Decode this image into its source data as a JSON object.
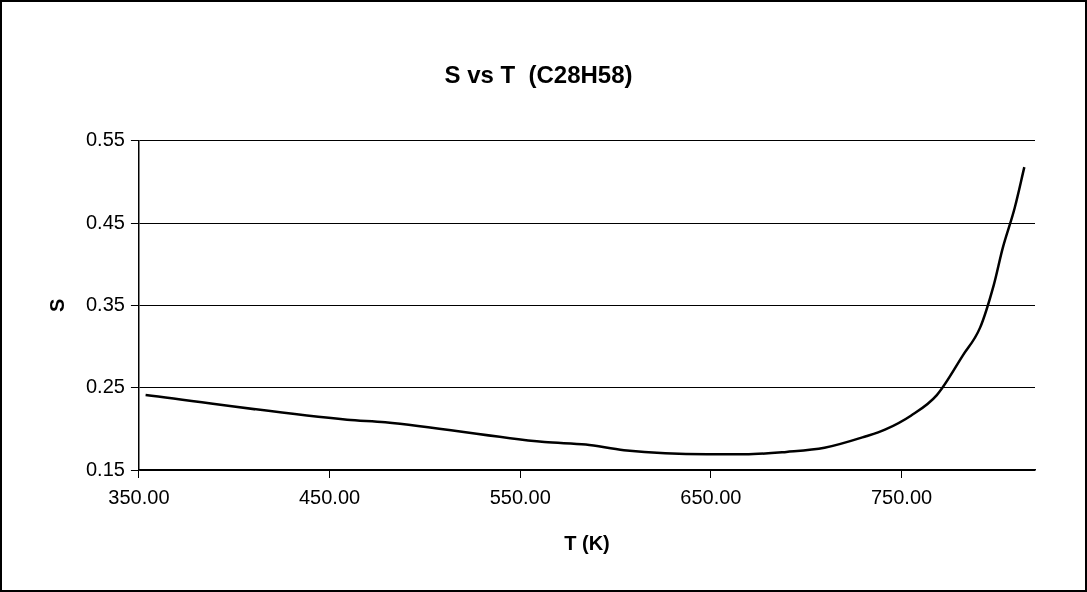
{
  "chart_data": {
    "type": "line",
    "title": "S vs T  (C28H58)",
    "xlabel": "T (K)",
    "ylabel": "S",
    "x": [
      353.5,
      459.2,
      479.2,
      562.7,
      584.4,
      604.4,
      647.9,
      667.8,
      689.6,
      709.6,
      731.4,
      741.3,
      754.9,
      768.5,
      782.1,
      791.2,
      798.4,
      803,
      809.3,
      814.4
    ],
    "series": [
      {
        "color": "#000000",
        "values": [
          0.241,
          0.211,
          0.208,
          0.184,
          0.181,
          0.174,
          0.169,
          0.169,
          0.172,
          0.177,
          0.191,
          0.199,
          0.216,
          0.241,
          0.289,
          0.323,
          0.375,
          0.419,
          0.468,
          0.518
        ]
      }
    ],
    "xlim": [
      350,
      820
    ],
    "xticks": [
      {
        "value": 350,
        "label": "350.00"
      },
      {
        "value": 450,
        "label": "450.00"
      },
      {
        "value": 550,
        "label": "550.00"
      },
      {
        "value": 650,
        "label": "650.00"
      },
      {
        "value": 750,
        "label": "750.00"
      }
    ],
    "ylim": [
      0.15,
      0.55
    ],
    "yticks": [
      {
        "value": 0.15,
        "label": "0.15"
      },
      {
        "value": 0.25,
        "label": "0.25"
      },
      {
        "value": 0.35,
        "label": "0.35"
      },
      {
        "value": 0.45,
        "label": "0.45"
      },
      {
        "value": 0.55,
        "label": "0.55"
      }
    ],
    "grid": "y",
    "legend": false,
    "marker": "none",
    "line_style": "solid"
  }
}
